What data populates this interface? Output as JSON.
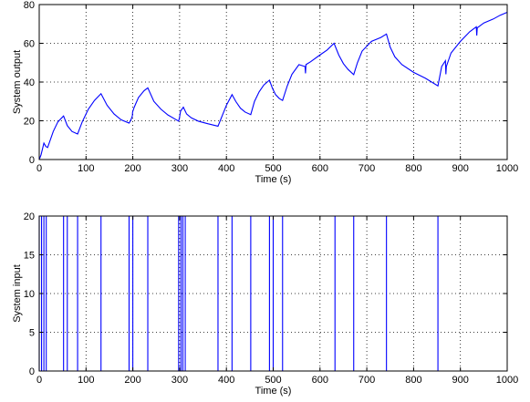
{
  "chart_data": [
    {
      "type": "line",
      "xlabel": "Time (s)",
      "ylabel": "System output",
      "xlim": [
        0,
        1000
      ],
      "ylim": [
        0,
        80
      ],
      "xticks": [
        0,
        100,
        200,
        300,
        400,
        500,
        600,
        700,
        800,
        900,
        1000
      ],
      "yticks": [
        0,
        20,
        40,
        60,
        80
      ],
      "grid": true,
      "series": [
        {
          "color": "#0000ff",
          "x": [
            0,
            4,
            10,
            14,
            18,
            30,
            40,
            52,
            60,
            70,
            82,
            92,
            105,
            118,
            132,
            145,
            160,
            175,
            192,
            196,
            199,
            199.5,
            203,
            212,
            224,
            232,
            245,
            260,
            275,
            298,
            300,
            302,
            308,
            315,
            325,
            340,
            360,
            382,
            390,
            400,
            412,
            420,
            430,
            440,
            452,
            460,
            470,
            480,
            492,
            498,
            505,
            513,
            520,
            530,
            540,
            555,
            568,
            569,
            570,
            580,
            600,
            615,
            630,
            640,
            650,
            660,
            672,
            680,
            690,
            710,
            730,
            742,
            750,
            760,
            775,
            800,
            825,
            852,
            860,
            868,
            869,
            870,
            880,
            900,
            920,
            934,
            935,
            936,
            950,
            970,
            985,
            1000
          ],
          "y": [
            0,
            2.5,
            8.5,
            6.8,
            6.2,
            14.5,
            19.5,
            22.5,
            17.5,
            14.5,
            13.2,
            19.5,
            26.0,
            30.5,
            34.0,
            28.0,
            23.5,
            20.5,
            18.8,
            20.5,
            22.5,
            24.5,
            27.0,
            32.0,
            35.5,
            37.0,
            30.0,
            26.0,
            23.0,
            19.8,
            22.0,
            25.0,
            27.0,
            23.5,
            21.5,
            19.8,
            18.5,
            17.2,
            22.0,
            28.0,
            33.5,
            30.0,
            26.5,
            24.5,
            23.2,
            30.0,
            35.0,
            38.5,
            41.0,
            37.0,
            33.5,
            31.5,
            30.5,
            38.0,
            44.0,
            49.0,
            48.0,
            44.5,
            49.0,
            50.5,
            54.0,
            56.5,
            60.0,
            54.0,
            49.5,
            46.5,
            43.8,
            50.0,
            56.0,
            61.0,
            63.0,
            64.8,
            58.0,
            53.0,
            49.0,
            45.0,
            42.0,
            38.0,
            48.0,
            51.0,
            44.0,
            48.0,
            55.0,
            61.0,
            66.0,
            68.5,
            64.0,
            68.0,
            70.5,
            72.5,
            74.5,
            76.0
          ]
        }
      ]
    },
    {
      "type": "line",
      "xlabel": "Time (s)",
      "ylabel": "System input",
      "xlim": [
        0,
        1000
      ],
      "ylim": [
        0,
        20
      ],
      "xticks": [
        0,
        100,
        200,
        300,
        400,
        500,
        600,
        700,
        800,
        900,
        1000
      ],
      "yticks": [
        0,
        5,
        10,
        15,
        20
      ],
      "grid": true,
      "series": [
        {
          "color": "#0000ff",
          "step": true,
          "x": [
            0,
            5,
            10,
            15,
            52,
            60,
            82,
            82,
            132,
            132,
            192,
            200,
            232,
            232,
            298,
            303,
            307,
            312,
            382,
            382,
            412,
            412,
            452,
            452,
            492,
            500,
            520,
            520,
            632,
            632,
            672,
            672,
            742,
            742,
            852,
            852,
            1000
          ],
          "y": [
            0,
            20,
            0,
            20,
            0,
            20,
            0,
            20,
            0,
            20,
            0,
            20,
            0,
            20,
            0,
            20,
            0,
            20,
            0,
            20,
            0,
            20,
            0,
            20,
            0,
            20,
            0,
            20,
            0,
            20,
            0,
            20,
            0,
            20,
            0,
            20,
            20
          ]
        }
      ]
    }
  ]
}
